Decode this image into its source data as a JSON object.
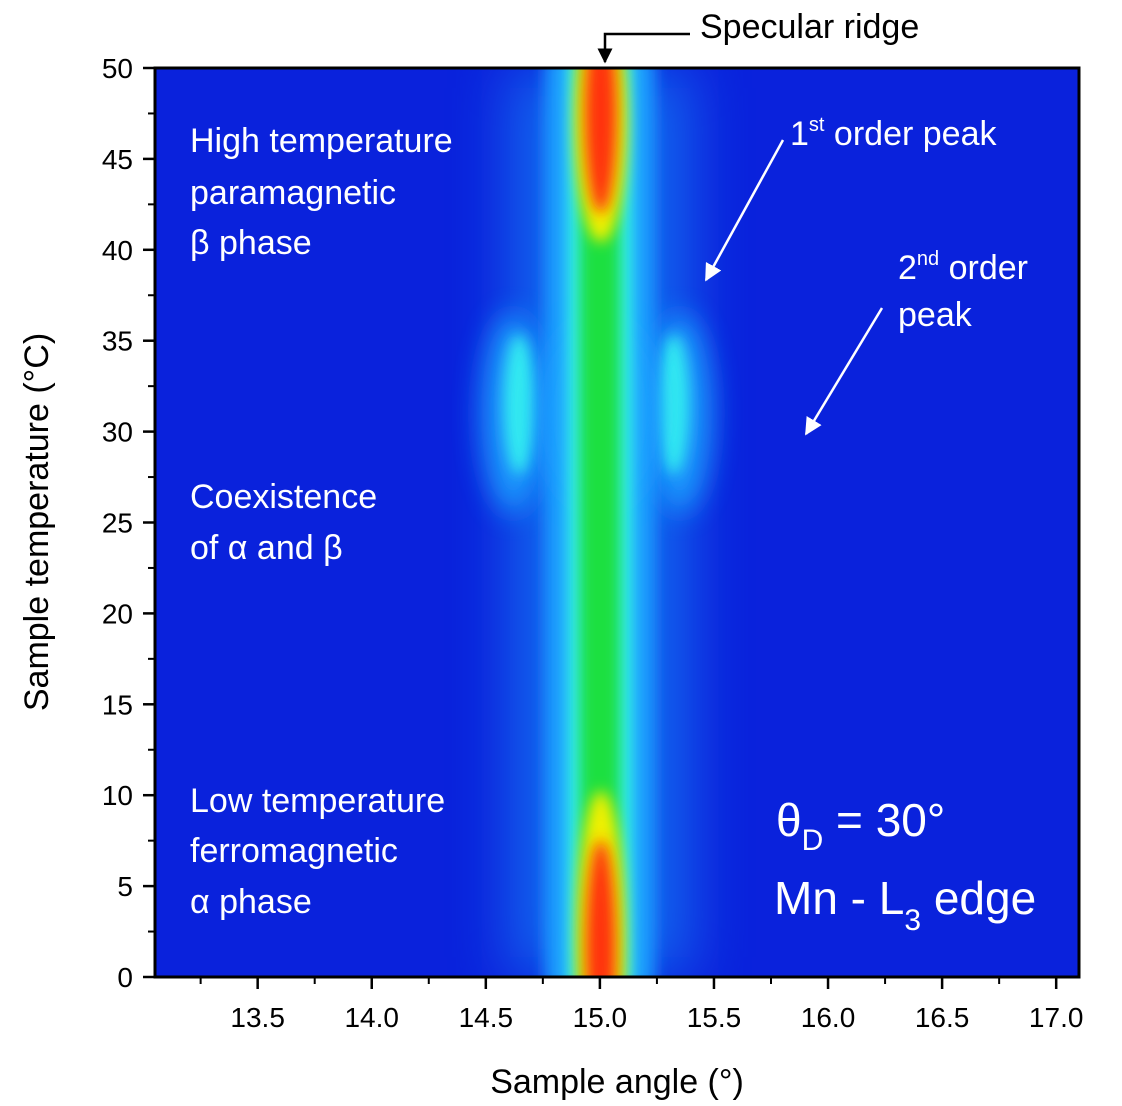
{
  "chart_data": {
    "type": "heatmap",
    "xlabel": "Sample angle (°)",
    "ylabel": "Sample temperature (°C)",
    "xlim": [
      13.05,
      17.1
    ],
    "ylim": [
      0,
      50
    ],
    "x_ticks": [
      13.5,
      14.0,
      14.5,
      15.0,
      15.5,
      16.0,
      16.5,
      17.0
    ],
    "x_tick_labels": [
      "13.5",
      "14.0",
      "14.5",
      "15.0",
      "15.5",
      "16.0",
      "16.5",
      "17.0"
    ],
    "y_ticks": [
      0,
      5,
      10,
      15,
      20,
      25,
      30,
      35,
      40,
      45,
      50
    ],
    "y_tick_labels": [
      "0",
      "5",
      "10",
      "15",
      "20",
      "25",
      "30",
      "35",
      "40",
      "45",
      "50"
    ],
    "colormap": [
      "#0a1fe0",
      "#1fa0ff",
      "#34f0f0",
      "#1ee040",
      "#f0f000",
      "#ff3010"
    ],
    "background_color": "#0a22dc",
    "features": [
      {
        "name": "specular ridge",
        "angle": 15.0,
        "temperature_range": [
          0,
          50
        ]
      },
      {
        "name": "1st order peak",
        "angles": [
          14.62,
          15.35
        ],
        "temperature_range": [
          24,
          38
        ]
      },
      {
        "name": "2nd order peak",
        "temperature": 30
      }
    ],
    "annotations": {
      "specular": "Specular ridge",
      "first_order_main": "1",
      "first_order_sup": "st",
      "first_order_rest": " order peak",
      "second_order_main": "2",
      "second_order_sup": "nd",
      "second_order_rest": " order",
      "second_order_line2": "peak",
      "high_temp": [
        "High temperature",
        "paramagnetic",
        "β phase"
      ],
      "coexist": [
        "Coexistence",
        "of α and β"
      ],
      "low_temp": [
        "Low temperature",
        "ferromagnetic",
        "α phase"
      ],
      "theta_symbol": "θ",
      "theta_sub": "D",
      "theta_value": " = 30°",
      "edge_main": "Mn - L",
      "edge_sub": "3",
      "edge_rest": " edge"
    }
  }
}
